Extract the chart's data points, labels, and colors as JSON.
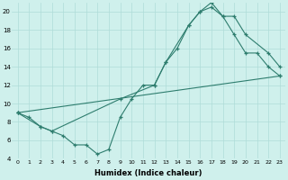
{
  "xlabel": "Humidex (Indice chaleur)",
  "bg_color": "#cff0ec",
  "grid_color": "#aedcd8",
  "line_color": "#2e7d6e",
  "xlim": [
    -0.5,
    23.5
  ],
  "ylim": [
    4,
    21
  ],
  "yticks": [
    4,
    6,
    8,
    10,
    12,
    14,
    16,
    18,
    20
  ],
  "xticks": [
    0,
    1,
    2,
    3,
    4,
    5,
    6,
    7,
    8,
    9,
    10,
    11,
    12,
    13,
    14,
    15,
    16,
    17,
    18,
    19,
    20,
    21,
    22,
    23
  ],
  "line1_x": [
    0,
    1,
    2,
    3,
    4,
    5,
    6,
    7,
    8,
    9,
    10,
    11,
    12,
    13,
    14,
    15,
    16,
    17,
    18,
    19,
    20,
    21,
    22,
    23
  ],
  "line1_y": [
    9.0,
    8.5,
    7.5,
    7.0,
    6.5,
    5.5,
    5.5,
    4.5,
    5.0,
    8.5,
    10.5,
    12.0,
    12.0,
    14.5,
    16.0,
    18.5,
    20.0,
    20.5,
    19.5,
    17.5,
    15.5,
    15.5,
    14.0,
    13.0
  ],
  "line2_x": [
    0,
    2,
    3,
    9,
    12,
    13,
    15,
    16,
    17,
    18,
    19,
    20,
    22,
    23
  ],
  "line2_y": [
    9.0,
    7.5,
    7.0,
    10.5,
    12.0,
    14.5,
    18.5,
    20.0,
    21.0,
    19.5,
    19.5,
    17.5,
    15.5,
    14.0
  ],
  "line3_x": [
    0,
    23
  ],
  "line3_y": [
    9.0,
    13.0
  ]
}
